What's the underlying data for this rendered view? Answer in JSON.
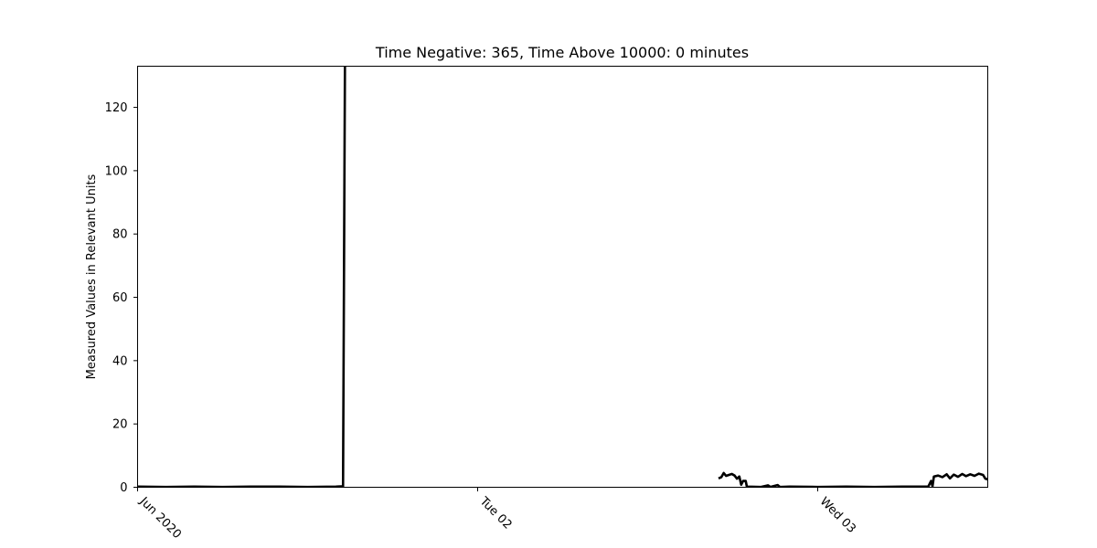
{
  "chart_data": {
    "type": "line",
    "title": "Time Negative: 365, Time Above 10000: 0 minutes",
    "xlabel": "",
    "ylabel": "Measured Values in Relevant Units",
    "xlim": [
      "2020-06-01T00:00",
      "2020-06-03T12:00"
    ],
    "ylim": [
      0,
      133
    ],
    "grid": false,
    "legend": "none",
    "line_color": "#000000",
    "x_ticks": [
      {
        "x": "2020-06-01T00:00",
        "label": "Jun 2020"
      },
      {
        "x": "2020-06-02T00:00",
        "label": "Tue 02"
      },
      {
        "x": "2020-06-03T00:00",
        "label": "Wed 03"
      }
    ],
    "y_ticks": [
      0,
      20,
      40,
      60,
      80,
      100,
      120
    ],
    "series": [
      {
        "segments": [
          [
            [
              "2020-06-01T00:00",
              0.2
            ],
            [
              "2020-06-01T02:00",
              0.1
            ],
            [
              "2020-06-01T04:00",
              0.2
            ],
            [
              "2020-06-01T06:00",
              0.1
            ],
            [
              "2020-06-01T08:00",
              0.2
            ],
            [
              "2020-06-01T10:00",
              0.2
            ],
            [
              "2020-06-01T12:00",
              0.1
            ],
            [
              "2020-06-01T14:00",
              0.2
            ],
            [
              "2020-06-01T14:30",
              0.3
            ],
            [
              "2020-06-01T14:38",
              133
            ]
          ],
          [
            [
              "2020-06-02T17:00",
              2.8
            ],
            [
              "2020-06-02T17:12",
              3.2
            ],
            [
              "2020-06-02T17:22",
              4.5
            ],
            [
              "2020-06-02T17:32",
              3.6
            ],
            [
              "2020-06-02T17:44",
              3.9
            ],
            [
              "2020-06-02T17:56",
              4.2
            ],
            [
              "2020-06-02T18:08",
              3.7
            ],
            [
              "2020-06-02T18:18",
              2.7
            ],
            [
              "2020-06-02T18:28",
              3.4
            ],
            [
              "2020-06-02T18:36",
              0.8
            ],
            [
              "2020-06-02T18:44",
              2.0
            ],
            [
              "2020-06-02T18:55",
              2.0
            ],
            [
              "2020-06-02T19:00",
              0.2
            ],
            [
              "2020-06-02T20:00",
              0.1
            ],
            [
              "2020-06-02T20:30",
              0.6
            ],
            [
              "2020-06-02T20:40",
              0.1
            ],
            [
              "2020-06-02T21:10",
              0.7
            ],
            [
              "2020-06-02T21:20",
              0.1
            ],
            [
              "2020-06-02T22:00",
              0.2
            ],
            [
              "2020-06-03T00:00",
              0.1
            ],
            [
              "2020-06-03T02:00",
              0.2
            ],
            [
              "2020-06-03T04:00",
              0.1
            ],
            [
              "2020-06-03T06:00",
              0.2
            ],
            [
              "2020-06-03T07:48",
              0.2
            ],
            [
              "2020-06-03T08:00",
              2.0
            ],
            [
              "2020-06-03T08:06",
              0.3
            ],
            [
              "2020-06-03T08:12",
              3.4
            ],
            [
              "2020-06-03T08:30",
              3.7
            ],
            [
              "2020-06-03T08:48",
              3.2
            ],
            [
              "2020-06-03T09:06",
              4.1
            ],
            [
              "2020-06-03T09:20",
              2.8
            ],
            [
              "2020-06-03T09:36",
              4.0
            ],
            [
              "2020-06-03T09:54",
              3.3
            ],
            [
              "2020-06-03T10:12",
              4.2
            ],
            [
              "2020-06-03T10:28",
              3.5
            ],
            [
              "2020-06-03T10:46",
              4.1
            ],
            [
              "2020-06-03T11:04",
              3.6
            ],
            [
              "2020-06-03T11:22",
              4.3
            ],
            [
              "2020-06-03T11:40",
              3.9
            ],
            [
              "2020-06-03T11:50",
              2.7
            ],
            [
              "2020-06-03T12:00",
              2.5
            ]
          ]
        ]
      }
    ]
  }
}
